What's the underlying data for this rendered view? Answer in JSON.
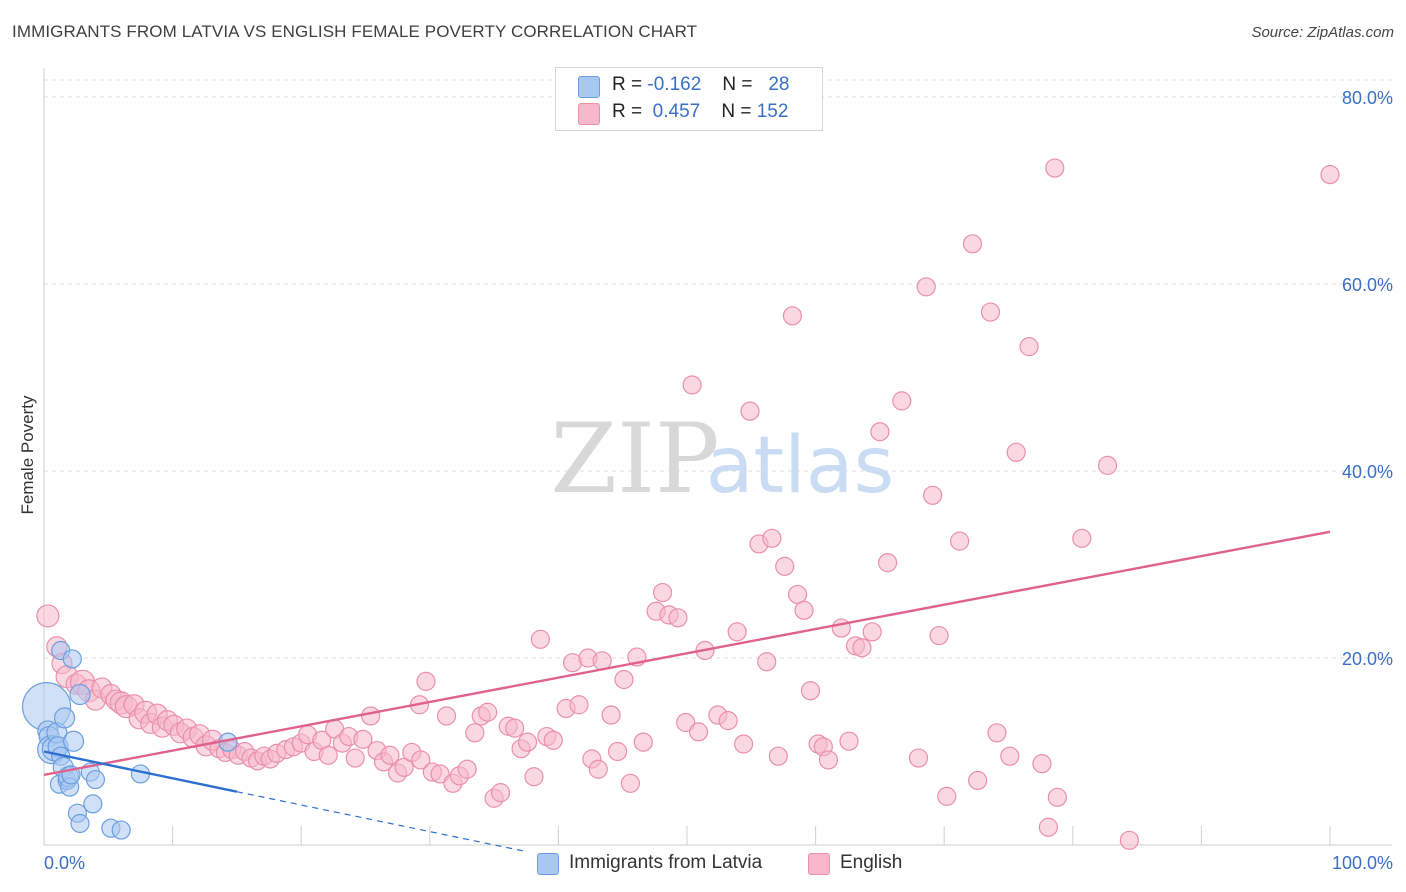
{
  "title": "IMMIGRANTS FROM LATVIA VS ENGLISH FEMALE POVERTY CORRELATION CHART",
  "source": "Source: ZipAtlas.com",
  "watermark": {
    "zip": "ZIP",
    "atlas": "atlas"
  },
  "colors": {
    "latvia_fill": "#a9c8f0",
    "latvia_stroke": "#6b9ee0",
    "latvia_line": "#2d6fd0",
    "english_fill": "#f6b8ca",
    "english_stroke": "#ea8faa",
    "english_line": "#e0618c",
    "grid": "#dcdcdc",
    "tick_label": "#3a6fc4"
  },
  "legend": {
    "rows": [
      {
        "r_label": "R =",
        "r_value": "-0.162",
        "n_label": "N =",
        "n_value": "28"
      },
      {
        "r_label": "R =",
        "r_value": "0.457",
        "n_label": "N =",
        "n_value": "152"
      }
    ]
  },
  "bottom_legend": [
    "Immigrants from Latvia",
    "English"
  ],
  "chart_data": {
    "type": "scatter",
    "title": "IMMIGRANTS FROM LATVIA VS ENGLISH FEMALE POVERTY CORRELATION CHART",
    "xlabel": "",
    "ylabel": "Female Poverty",
    "xlim": [
      0,
      100
    ],
    "ylim": [
      0,
      80
    ],
    "x_tick_labels": [
      "0.0%",
      "100.0%"
    ],
    "y_ticks": [
      20,
      40,
      60,
      80
    ],
    "y_tick_labels": [
      "20.0%",
      "40.0%",
      "60.0%",
      "80.0%"
    ],
    "grid": true,
    "legend_position": "top-center",
    "series": [
      {
        "name": "Immigrants from Latvia",
        "R": -0.162,
        "N": 28,
        "trend": {
          "x0": 0,
          "y0": 10.0,
          "x1": 15,
          "y1": 5.7,
          "dashed_to_x": 37.5,
          "dashed_to_y": -0.7
        },
        "points": [
          [
            0.2,
            14.8,
            24
          ],
          [
            0.3,
            12.2,
            10
          ],
          [
            0.4,
            11.6,
            10
          ],
          [
            0.6,
            10.2,
            14
          ],
          [
            0.8,
            10.3,
            12
          ],
          [
            1.0,
            12.0,
            10
          ],
          [
            1.1,
            10.5,
            10
          ],
          [
            1.2,
            6.5,
            9
          ],
          [
            1.3,
            9.5,
            9
          ],
          [
            1.5,
            8.3,
            10
          ],
          [
            1.6,
            13.6,
            10
          ],
          [
            1.8,
            6.9,
            9
          ],
          [
            1.9,
            7.3,
            10
          ],
          [
            1.3,
            20.8,
            9
          ],
          [
            2.0,
            6.2,
            9
          ],
          [
            2.3,
            11.1,
            10
          ],
          [
            2.1,
            7.5,
            9
          ],
          [
            2.2,
            19.9,
            9
          ],
          [
            2.8,
            16.1,
            10
          ],
          [
            3.6,
            7.8,
            9
          ],
          [
            2.6,
            3.4,
            9
          ],
          [
            2.8,
            2.3,
            9
          ],
          [
            3.8,
            4.4,
            9
          ],
          [
            4.0,
            7.0,
            9
          ],
          [
            5.2,
            1.8,
            9
          ],
          [
            6.0,
            1.6,
            9
          ],
          [
            7.5,
            7.6,
            9
          ],
          [
            14.3,
            11.0,
            9
          ]
        ]
      },
      {
        "name": "English",
        "R": 0.457,
        "N": 152,
        "trend": {
          "x0": 0,
          "y0": 7.5,
          "x1": 100,
          "y1": 33.5
        },
        "points": [
          [
            0.3,
            24.5,
            11
          ],
          [
            1.0,
            21.2,
            10
          ],
          [
            1.4,
            19.4,
            10
          ],
          [
            1.8,
            18.0,
            11
          ],
          [
            2.5,
            17.2,
            10
          ],
          [
            3.0,
            17.4,
            12
          ],
          [
            3.5,
            16.5,
            11
          ],
          [
            4.0,
            15.5,
            10
          ],
          [
            4.5,
            16.8,
            10
          ],
          [
            5.2,
            16.1,
            10
          ],
          [
            5.6,
            15.5,
            10
          ],
          [
            6.0,
            15.2,
            11
          ],
          [
            6.4,
            14.8,
            11
          ],
          [
            7.0,
            15.0,
            10
          ],
          [
            7.4,
            13.5,
            10
          ],
          [
            7.9,
            14.2,
            11
          ],
          [
            8.3,
            13.0,
            10
          ],
          [
            8.8,
            14.0,
            10
          ],
          [
            9.2,
            12.6,
            10
          ],
          [
            9.6,
            13.3,
            10
          ],
          [
            10.1,
            12.8,
            10
          ],
          [
            10.6,
            12.0,
            10
          ],
          [
            11.1,
            12.4,
            10
          ],
          [
            11.6,
            11.5,
            10
          ],
          [
            12.1,
            11.8,
            10
          ],
          [
            12.6,
            10.6,
            10
          ],
          [
            13.1,
            11.2,
            10
          ],
          [
            13.6,
            10.3,
            9
          ],
          [
            14.1,
            9.9,
            9
          ],
          [
            14.6,
            10.2,
            9
          ],
          [
            15.1,
            9.6,
            9
          ],
          [
            15.6,
            10.0,
            9
          ],
          [
            16.1,
            9.3,
            9
          ],
          [
            16.6,
            9.0,
            9
          ],
          [
            17.1,
            9.5,
            9
          ],
          [
            17.6,
            9.2,
            9
          ],
          [
            18.1,
            9.8,
            9
          ],
          [
            18.8,
            10.2,
            9
          ],
          [
            19.4,
            10.5,
            9
          ],
          [
            20.0,
            10.9,
            9
          ],
          [
            20.5,
            11.8,
            9
          ],
          [
            21.0,
            10.0,
            9
          ],
          [
            21.6,
            11.2,
            9
          ],
          [
            22.1,
            9.6,
            9
          ],
          [
            22.6,
            12.4,
            9
          ],
          [
            23.2,
            10.9,
            9
          ],
          [
            23.7,
            11.6,
            9
          ],
          [
            24.2,
            9.3,
            9
          ],
          [
            24.8,
            11.3,
            9
          ],
          [
            25.4,
            13.8,
            9
          ],
          [
            25.9,
            10.1,
            9
          ],
          [
            26.4,
            8.9,
            9
          ],
          [
            26.9,
            9.6,
            9
          ],
          [
            27.5,
            7.7,
            9
          ],
          [
            28.0,
            8.3,
            9
          ],
          [
            28.6,
            9.9,
            9
          ],
          [
            29.2,
            15.0,
            9
          ],
          [
            29.7,
            17.5,
            9
          ],
          [
            29.3,
            9.1,
            9
          ],
          [
            30.2,
            7.8,
            9
          ],
          [
            30.8,
            7.6,
            9
          ],
          [
            31.3,
            13.8,
            9
          ],
          [
            31.8,
            6.6,
            9
          ],
          [
            32.3,
            7.4,
            9
          ],
          [
            32.9,
            8.1,
            9
          ],
          [
            33.5,
            12.0,
            9
          ],
          [
            34.0,
            13.8,
            9
          ],
          [
            34.5,
            14.2,
            9
          ],
          [
            35.0,
            5.0,
            9
          ],
          [
            35.5,
            5.6,
            9
          ],
          [
            36.1,
            12.7,
            9
          ],
          [
            36.6,
            12.5,
            9
          ],
          [
            37.1,
            10.3,
            9
          ],
          [
            37.6,
            11.0,
            9
          ],
          [
            38.1,
            7.3,
            9
          ],
          [
            38.6,
            22.0,
            9
          ],
          [
            39.1,
            11.6,
            9
          ],
          [
            39.6,
            11.2,
            9
          ],
          [
            40.6,
            14.6,
            9
          ],
          [
            41.1,
            19.5,
            9
          ],
          [
            41.6,
            15.0,
            9
          ],
          [
            42.3,
            20.0,
            9
          ],
          [
            43.4,
            19.7,
            9
          ],
          [
            42.6,
            9.2,
            9
          ],
          [
            43.1,
            8.1,
            9
          ],
          [
            44.1,
            13.9,
            9
          ],
          [
            44.6,
            10.0,
            9
          ],
          [
            45.1,
            17.7,
            9
          ],
          [
            45.6,
            6.6,
            9
          ],
          [
            46.1,
            20.1,
            9
          ],
          [
            46.6,
            11.0,
            9
          ],
          [
            47.6,
            25.0,
            9
          ],
          [
            48.1,
            27.0,
            9
          ],
          [
            48.6,
            24.6,
            9
          ],
          [
            49.3,
            24.3,
            9
          ],
          [
            49.9,
            13.1,
            9
          ],
          [
            50.4,
            49.2,
            9
          ],
          [
            50.9,
            12.1,
            9
          ],
          [
            51.4,
            20.8,
            9
          ],
          [
            52.4,
            13.9,
            9
          ],
          [
            53.2,
            13.3,
            9
          ],
          [
            53.9,
            22.8,
            9
          ],
          [
            54.4,
            10.8,
            9
          ],
          [
            54.9,
            46.4,
            9
          ],
          [
            55.6,
            32.2,
            9
          ],
          [
            56.2,
            19.6,
            9
          ],
          [
            56.6,
            32.8,
            9
          ],
          [
            57.1,
            9.5,
            9
          ],
          [
            57.6,
            29.8,
            9
          ],
          [
            58.2,
            56.6,
            9
          ],
          [
            58.6,
            26.8,
            9
          ],
          [
            59.1,
            25.1,
            9
          ],
          [
            59.6,
            16.5,
            9
          ],
          [
            60.2,
            10.8,
            9
          ],
          [
            60.6,
            10.5,
            9
          ],
          [
            61.0,
            9.1,
            9
          ],
          [
            62.0,
            23.2,
            9
          ],
          [
            62.6,
            11.1,
            9
          ],
          [
            63.1,
            21.3,
            9
          ],
          [
            63.6,
            21.1,
            9
          ],
          [
            64.4,
            22.8,
            9
          ],
          [
            65.0,
            44.2,
            9
          ],
          [
            65.6,
            30.2,
            9
          ],
          [
            66.7,
            47.5,
            9
          ],
          [
            68.0,
            9.3,
            9
          ],
          [
            68.6,
            59.7,
            9
          ],
          [
            69.1,
            37.4,
            9
          ],
          [
            69.6,
            22.4,
            9
          ],
          [
            70.2,
            5.2,
            9
          ],
          [
            71.2,
            32.5,
            9
          ],
          [
            72.2,
            64.3,
            9
          ],
          [
            72.6,
            6.9,
            9
          ],
          [
            73.6,
            57.0,
            9
          ],
          [
            74.1,
            12.0,
            9
          ],
          [
            75.1,
            9.5,
            9
          ],
          [
            75.6,
            42.0,
            9
          ],
          [
            76.6,
            53.3,
            9
          ],
          [
            77.6,
            8.7,
            9
          ],
          [
            78.1,
            1.9,
            9
          ],
          [
            78.6,
            72.4,
            9
          ],
          [
            78.8,
            5.1,
            9
          ],
          [
            80.7,
            32.8,
            9
          ],
          [
            82.7,
            40.6,
            9
          ],
          [
            84.4,
            0.5,
            9
          ],
          [
            100.0,
            71.7,
            9
          ]
        ]
      }
    ]
  }
}
